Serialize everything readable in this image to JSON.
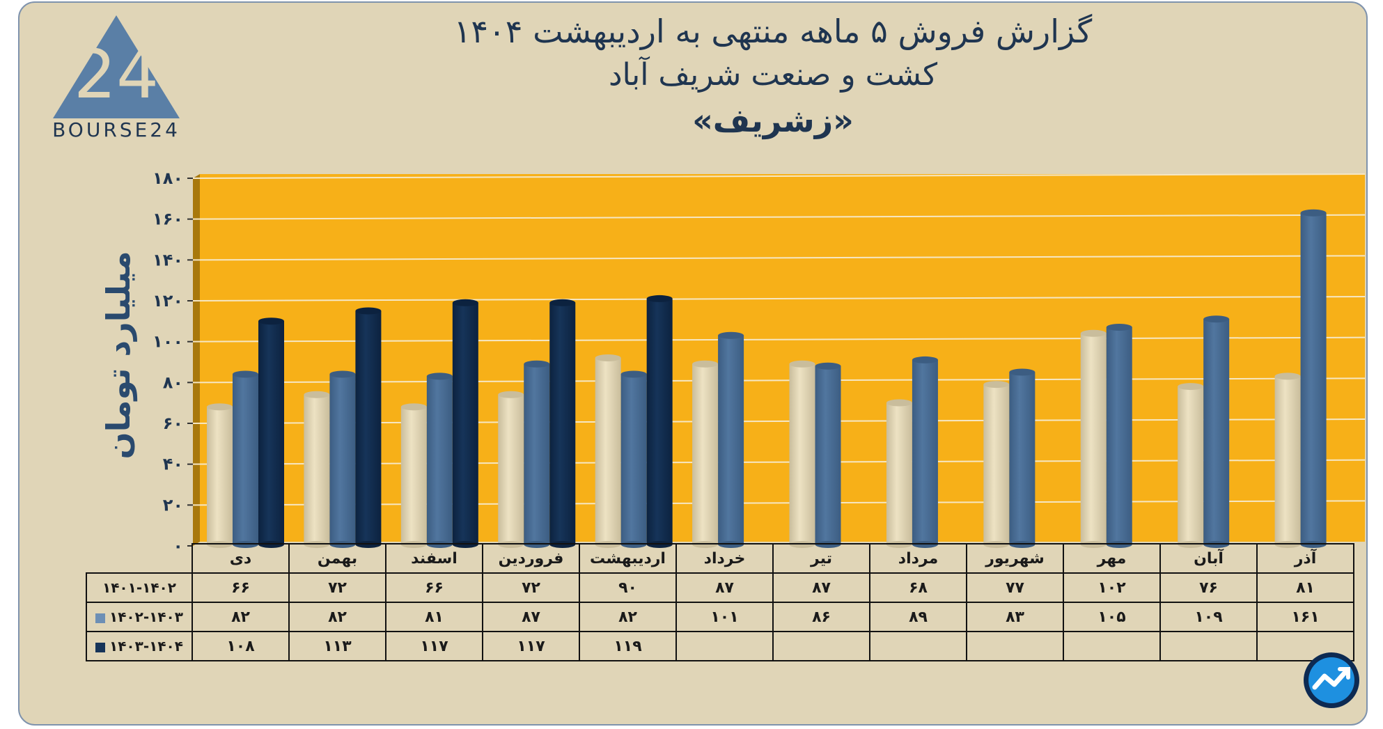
{
  "title": {
    "line1": "گزارش  فروش ۵ ماهه منتهی به اردیبهشت ۱۴۰۴",
    "line2": "کشت و صنعت شریف آباد",
    "line3": "«زشریف»"
  },
  "logo": {
    "mark": "24",
    "text": "BOURSE24"
  },
  "colors": {
    "background": "#e0d5b7",
    "plot": "#f7b018",
    "series1": "#ede2c3",
    "series2": "#51769f",
    "series3": "#163459"
  },
  "chart_data": {
    "type": "bar",
    "ylabel": "میلیارد تومان",
    "ylim": [
      0,
      180
    ],
    "yticks": [
      "۰",
      "۲۰",
      "۴۰",
      "۶۰",
      "۸۰",
      "۱۰۰",
      "۱۲۰",
      "۱۴۰",
      "۱۶۰",
      "۱۸۰"
    ],
    "categories": [
      "دی",
      "بهمن",
      "اسفند",
      "فروردین",
      "اردیبهشت",
      "خرداد",
      "تیر",
      "مرداد",
      "شهریور",
      "مهر",
      "آبان",
      "آذر"
    ],
    "series": [
      {
        "name": "۱۴۰۱-۱۴۰۲",
        "values": [
          66,
          72,
          66,
          72,
          90,
          87,
          87,
          68,
          77,
          102,
          76,
          81
        ],
        "labels": [
          "۶۶",
          "۷۲",
          "۶۶",
          "۷۲",
          "۹۰",
          "۸۷",
          "۸۷",
          "۶۸",
          "۷۷",
          "۱۰۲",
          "۷۶",
          "۸۱"
        ]
      },
      {
        "name": "۱۴۰۲-۱۴۰۳",
        "values": [
          82,
          82,
          81,
          87,
          82,
          101,
          86,
          89,
          83,
          105,
          109,
          161
        ],
        "labels": [
          "۸۲",
          "۸۲",
          "۸۱",
          "۸۷",
          "۸۲",
          "۱۰۱",
          "۸۶",
          "۸۹",
          "۸۳",
          "۱۰۵",
          "۱۰۹",
          "۱۶۱"
        ]
      },
      {
        "name": "۱۴۰۳-۱۴۰۴",
        "values": [
          108,
          113,
          117,
          117,
          119,
          null,
          null,
          null,
          null,
          null,
          null,
          null
        ],
        "labels": [
          "۱۰۸",
          "۱۱۳",
          "۱۱۷",
          "۱۱۷",
          "۱۱۹",
          "",
          "",
          "",
          "",
          "",
          "",
          ""
        ]
      }
    ],
    "grid": true,
    "legend": "table-left"
  }
}
